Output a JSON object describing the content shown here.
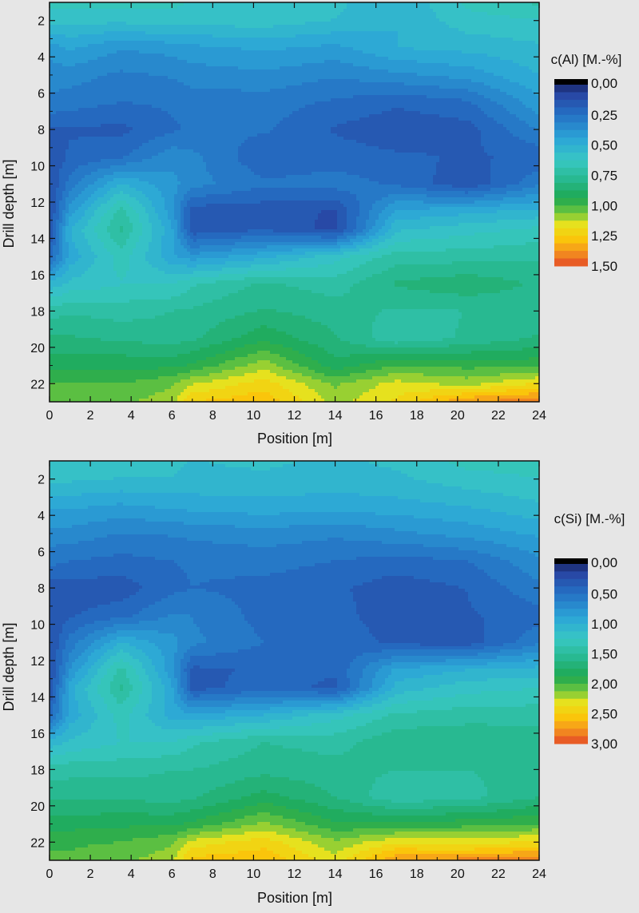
{
  "chart_data": [
    {
      "type": "heatmap",
      "subtype": "filled-contour",
      "xlabel": "Position [m]",
      "ylabel": "Drill depth [m]",
      "xlim": [
        0,
        24
      ],
      "ylim": [
        23,
        1
      ],
      "y_inverted": true,
      "xticks": [
        0,
        2,
        4,
        6,
        8,
        10,
        12,
        14,
        16,
        18,
        20,
        22,
        24
      ],
      "yticks": [
        2,
        4,
        6,
        8,
        10,
        12,
        14,
        16,
        18,
        20,
        22
      ],
      "colorbar": {
        "title": "c(Al) [M.-%]",
        "range": [
          0,
          1.5
        ],
        "ticks": [
          0,
          0.25,
          0.5,
          0.75,
          1.0,
          1.25,
          1.5
        ],
        "tick_labels": [
          "0,00",
          "0,25",
          "0,50",
          "0,75",
          "1,00",
          "1,25",
          "1,50"
        ]
      },
      "x": [
        0,
        1,
        3.5,
        6,
        7,
        10.5,
        14,
        17,
        20.5,
        24
      ],
      "y": [
        1,
        2,
        3.5,
        5,
        6.5,
        8,
        9.5,
        11,
        12.5,
        13.5,
        15,
        16.5,
        18,
        19.5,
        21,
        22,
        23
      ],
      "z": [
        [
          0.65,
          0.65,
          0.66,
          0.64,
          0.62,
          0.6,
          0.58,
          0.5,
          0.64,
          0.7
        ],
        [
          0.58,
          0.58,
          0.58,
          0.6,
          0.59,
          0.6,
          0.56,
          0.5,
          0.6,
          0.62
        ],
        [
          0.4,
          0.45,
          0.38,
          0.4,
          0.42,
          0.45,
          0.42,
          0.5,
          0.52,
          0.55
        ],
        [
          0.34,
          0.34,
          0.3,
          0.32,
          0.34,
          0.36,
          0.32,
          0.36,
          0.4,
          0.5
        ],
        [
          0.3,
          0.28,
          0.25,
          0.26,
          0.28,
          0.28,
          0.24,
          0.2,
          0.24,
          0.42
        ],
        [
          0.18,
          0.18,
          0.17,
          0.24,
          0.26,
          0.26,
          0.18,
          0.14,
          0.16,
          0.32
        ],
        [
          0.13,
          0.2,
          0.24,
          0.35,
          0.33,
          0.2,
          0.22,
          0.2,
          0.18,
          0.2
        ],
        [
          0.12,
          0.28,
          0.5,
          0.4,
          0.34,
          0.26,
          0.28,
          0.24,
          0.14,
          0.3
        ],
        [
          0.12,
          0.4,
          0.72,
          0.4,
          0.15,
          0.15,
          0.12,
          0.45,
          0.48,
          0.52
        ],
        [
          0.12,
          0.5,
          0.76,
          0.45,
          0.14,
          0.18,
          0.1,
          0.55,
          0.6,
          0.64
        ],
        [
          0.22,
          0.46,
          0.66,
          0.45,
          0.4,
          0.48,
          0.6,
          0.72,
          0.72,
          0.74
        ],
        [
          0.52,
          0.58,
          0.62,
          0.62,
          0.68,
          0.76,
          0.72,
          0.82,
          0.86,
          0.8
        ],
        [
          0.72,
          0.74,
          0.72,
          0.75,
          0.76,
          0.82,
          0.78,
          0.74,
          0.75,
          0.78
        ],
        [
          0.82,
          0.82,
          0.8,
          0.78,
          0.8,
          0.92,
          0.82,
          0.7,
          0.76,
          0.82
        ],
        [
          0.92,
          0.92,
          0.92,
          0.92,
          0.95,
          1.1,
          0.9,
          1.0,
          0.98,
          0.98
        ],
        [
          1.0,
          1.0,
          1.0,
          1.05,
          1.12,
          1.22,
          1.05,
          1.15,
          1.1,
          1.2
        ],
        [
          1.02,
          1.02,
          1.05,
          1.1,
          1.25,
          1.3,
          1.1,
          1.2,
          1.38,
          1.42
        ]
      ]
    },
    {
      "type": "heatmap",
      "subtype": "filled-contour",
      "xlabel": "Position [m]",
      "ylabel": "Drill depth [m]",
      "xlim": [
        0,
        24
      ],
      "ylim": [
        23,
        1
      ],
      "y_inverted": true,
      "xticks": [
        0,
        2,
        4,
        6,
        8,
        10,
        12,
        14,
        16,
        18,
        20,
        22,
        24
      ],
      "yticks": [
        2,
        4,
        6,
        8,
        10,
        12,
        14,
        16,
        18,
        20,
        22
      ],
      "colorbar": {
        "title": "c(Si) [M.-%]",
        "range": [
          0,
          3
        ],
        "ticks": [
          0,
          0.5,
          1.0,
          1.5,
          2.0,
          2.5,
          3.0
        ],
        "tick_labels": [
          "0,00",
          "0,50",
          "1,00",
          "1,50",
          "2,00",
          "2,50",
          "3,00"
        ]
      },
      "x": [
        0,
        1,
        3.5,
        6,
        7,
        10.5,
        14,
        17,
        20.5,
        24
      ],
      "y": [
        1,
        2,
        3.5,
        5,
        6.5,
        8,
        9.5,
        11,
        12.5,
        13.5,
        15,
        16.5,
        18,
        19.5,
        21,
        22,
        23
      ],
      "z": [
        [
          1.2,
          1.2,
          1.15,
          1.15,
          1.12,
          1.15,
          1.1,
          1.15,
          1.3,
          1.3
        ],
        [
          1.15,
          1.15,
          1.12,
          1.12,
          1.1,
          1.1,
          1.08,
          1.1,
          1.2,
          1.25
        ],
        [
          0.9,
          0.9,
          0.85,
          0.9,
          0.92,
          0.95,
          0.92,
          0.95,
          1.0,
          1.1
        ],
        [
          0.7,
          0.7,
          0.62,
          0.64,
          0.66,
          0.7,
          0.65,
          0.72,
          0.8,
          0.9
        ],
        [
          0.55,
          0.5,
          0.46,
          0.5,
          0.52,
          0.55,
          0.5,
          0.45,
          0.5,
          0.72
        ],
        [
          0.3,
          0.32,
          0.3,
          0.46,
          0.5,
          0.46,
          0.4,
          0.3,
          0.38,
          0.6
        ],
        [
          0.26,
          0.36,
          0.45,
          0.64,
          0.62,
          0.45,
          0.42,
          0.3,
          0.36,
          0.44
        ],
        [
          0.24,
          0.55,
          1.0,
          0.8,
          0.66,
          0.5,
          0.46,
          0.34,
          0.3,
          0.6
        ],
        [
          0.22,
          0.75,
          1.42,
          0.8,
          0.34,
          0.4,
          0.4,
          0.9,
          1.0,
          1.05
        ],
        [
          0.24,
          0.95,
          1.52,
          0.9,
          0.32,
          0.44,
          0.34,
          1.05,
          1.2,
          1.25
        ],
        [
          0.44,
          0.92,
          1.3,
          0.95,
          0.9,
          1.0,
          1.2,
          1.4,
          1.45,
          1.45
        ],
        [
          1.05,
          1.15,
          1.25,
          1.25,
          1.35,
          1.5,
          1.45,
          1.6,
          1.6,
          1.58
        ],
        [
          1.42,
          1.45,
          1.45,
          1.5,
          1.5,
          1.58,
          1.55,
          1.5,
          1.5,
          1.55
        ],
        [
          1.6,
          1.6,
          1.6,
          1.56,
          1.6,
          1.8,
          1.62,
          1.4,
          1.45,
          1.62
        ],
        [
          1.82,
          1.82,
          1.85,
          1.85,
          1.9,
          2.15,
          1.9,
          1.9,
          1.95,
          2.0
        ],
        [
          1.98,
          1.98,
          2.0,
          2.1,
          2.3,
          2.45,
          2.15,
          2.35,
          2.3,
          2.4
        ],
        [
          2.02,
          2.02,
          2.1,
          2.2,
          2.55,
          2.6,
          2.3,
          2.75,
          2.8,
          2.85
        ]
      ]
    }
  ]
}
